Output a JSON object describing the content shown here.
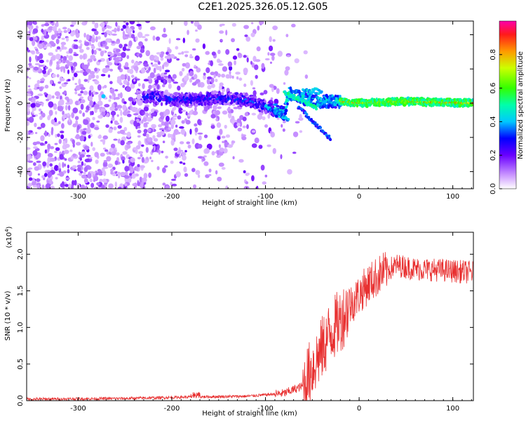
{
  "title": "C2E1.2025.326.05.12.G05",
  "chart_data": [
    {
      "type": "heatmap",
      "xlabel": "Height of straight line (km)",
      "ylabel": "Frequency (Hz)",
      "xlim": [
        -355,
        122
      ],
      "ylim": [
        -50,
        48
      ],
      "x_ticks": [
        -300,
        -200,
        -100,
        0,
        100
      ],
      "y_ticks": [
        -40,
        -20,
        0,
        20,
        40
      ],
      "x_tick_labels": [
        "-300",
        "-200",
        "-100",
        "0",
        "100"
      ],
      "y_tick_labels": [
        "-40",
        "-20",
        "0",
        "20",
        "40"
      ],
      "colorbar": {
        "label": "Normalized spectral amplitude",
        "ticks": [
          0.0,
          0.2,
          0.4,
          0.6,
          0.8
        ],
        "tick_labels": [
          "0.0",
          "0.2",
          "0.4",
          "0.6",
          "0.8"
        ],
        "range": [
          0,
          1
        ]
      },
      "ridge": {
        "description_points": [
          {
            "x": -275,
            "y": 4
          },
          {
            "x": -225,
            "y": 4
          },
          {
            "x": -200,
            "y": 2
          },
          {
            "x": -150,
            "y": 3
          },
          {
            "x": -120,
            "y": 2
          },
          {
            "x": -80,
            "y": -6
          },
          {
            "x": -75,
            "y": 6
          },
          {
            "x": -50,
            "y": 1
          },
          {
            "x": -20,
            "y": 1
          },
          {
            "x": 0,
            "y": 0
          },
          {
            "x": 50,
            "y": 1
          },
          {
            "x": 120,
            "y": 0
          }
        ]
      }
    },
    {
      "type": "line",
      "xlabel": "Height of straight line (km)",
      "ylabel": "SNR (10 * v/v)",
      "scale_label": "(x10",
      "scale_exp": "4",
      "scale_close": ")",
      "xlim": [
        -355,
        122
      ],
      "ylim": [
        0,
        2.3
      ],
      "x_ticks": [
        -300,
        -200,
        -100,
        0,
        100
      ],
      "y_ticks": [
        0.0,
        0.5,
        1.0,
        1.5,
        2.0
      ],
      "x_tick_labels": [
        "-300",
        "-200",
        "-100",
        "0",
        "100"
      ],
      "y_tick_labels": [
        "0.0",
        "0.5",
        "1.0",
        "1.5",
        "2.0"
      ],
      "line_color": "#e83030",
      "trend": [
        {
          "x": -355,
          "y": 0.02
        },
        {
          "x": -250,
          "y": 0.03
        },
        {
          "x": -180,
          "y": 0.05
        },
        {
          "x": -120,
          "y": 0.06
        },
        {
          "x": -80,
          "y": 0.1
        },
        {
          "x": -60,
          "y": 0.2
        },
        {
          "x": -50,
          "y": 0.45
        },
        {
          "x": -40,
          "y": 0.7
        },
        {
          "x": -30,
          "y": 0.95
        },
        {
          "x": -20,
          "y": 1.1
        },
        {
          "x": -10,
          "y": 1.3
        },
        {
          "x": 0,
          "y": 1.45
        },
        {
          "x": 10,
          "y": 1.6
        },
        {
          "x": 25,
          "y": 1.75
        },
        {
          "x": 40,
          "y": 1.85
        },
        {
          "x": 60,
          "y": 1.8
        },
        {
          "x": 90,
          "y": 1.78
        },
        {
          "x": 122,
          "y": 1.75
        }
      ]
    }
  ]
}
